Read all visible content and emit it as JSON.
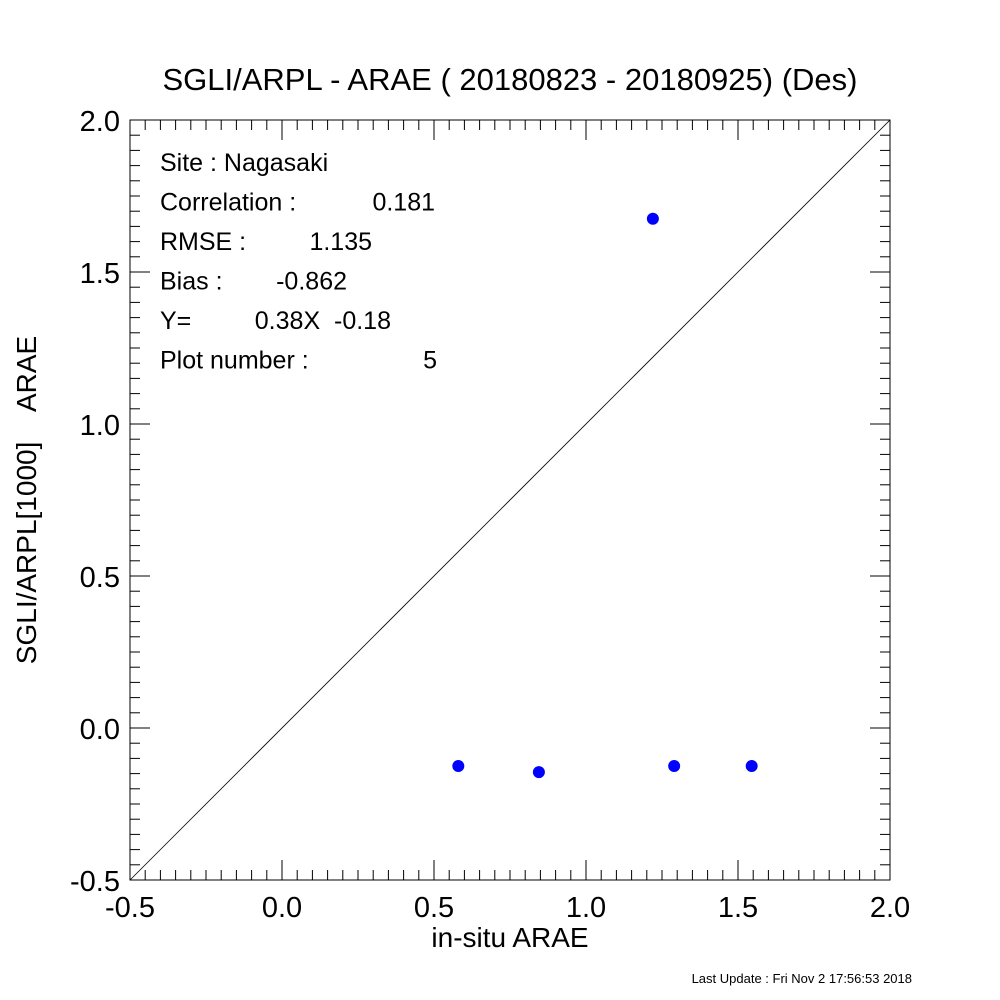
{
  "chart_data": {
    "type": "scatter",
    "title": "SGLI/ARPL - ARAE ( 20180823 - 20180925) (Des)",
    "xlabel": "in-situ ARAE",
    "ylabel": "SGLI/ARPL[1000]    ARAE",
    "xlim": [
      -0.5,
      2.0
    ],
    "ylim": [
      -0.5,
      2.0
    ],
    "x_ticks": [
      "-0.5",
      "0.0",
      "0.5",
      "1.0",
      "1.5",
      "2.0"
    ],
    "y_ticks": [
      "-0.5",
      "0.0",
      "0.5",
      "1.0",
      "1.5",
      "2.0"
    ],
    "x": [
      0.58,
      0.845,
      1.22,
      1.29,
      1.545
    ],
    "y": [
      -0.125,
      -0.145,
      1.675,
      -0.125,
      -0.125
    ],
    "point_color": "#0000ff",
    "reference_line": {
      "from": [
        -0.5,
        -0.5
      ],
      "to": [
        2.0,
        2.0
      ]
    },
    "stats": [
      {
        "label": "Site : Nagasaki",
        "value": ""
      },
      {
        "label": "Correlation :",
        "value": "0.181"
      },
      {
        "label": "RMSE :",
        "value": "1.135"
      },
      {
        "label": "Bias :",
        "value": "-0.862"
      },
      {
        "label": "Y=",
        "value": "0.38X  -0.18"
      },
      {
        "label": "Plot number :",
        "value": "5"
      }
    ]
  },
  "footer": "Last Update : Fri Nov  2 17:56:53 2018"
}
